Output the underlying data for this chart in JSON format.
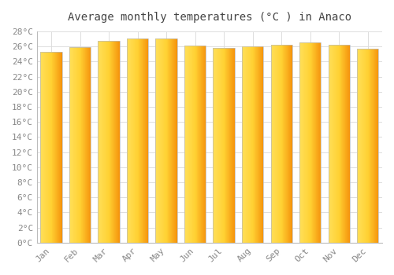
{
  "title": "Average monthly temperatures (°C ) in Anaco",
  "months": [
    "Jan",
    "Feb",
    "Mar",
    "Apr",
    "May",
    "Jun",
    "Jul",
    "Aug",
    "Sep",
    "Oct",
    "Nov",
    "Dec"
  ],
  "values": [
    25.3,
    25.9,
    26.7,
    27.1,
    27.1,
    26.1,
    25.8,
    26.0,
    26.2,
    26.5,
    26.2,
    25.7
  ],
  "bar_color_left": "#FFD04A",
  "bar_color_right": "#F5A800",
  "bar_color_center": "#FFE066",
  "background_color": "#FFFFFF",
  "grid_color": "#DDDDDD",
  "tick_label_color": "#888888",
  "title_color": "#444444",
  "border_color": "#BBBBBB",
  "ylim": [
    0,
    28
  ],
  "ytick_step": 2,
  "figsize": [
    5.0,
    3.5
  ],
  "dpi": 100
}
